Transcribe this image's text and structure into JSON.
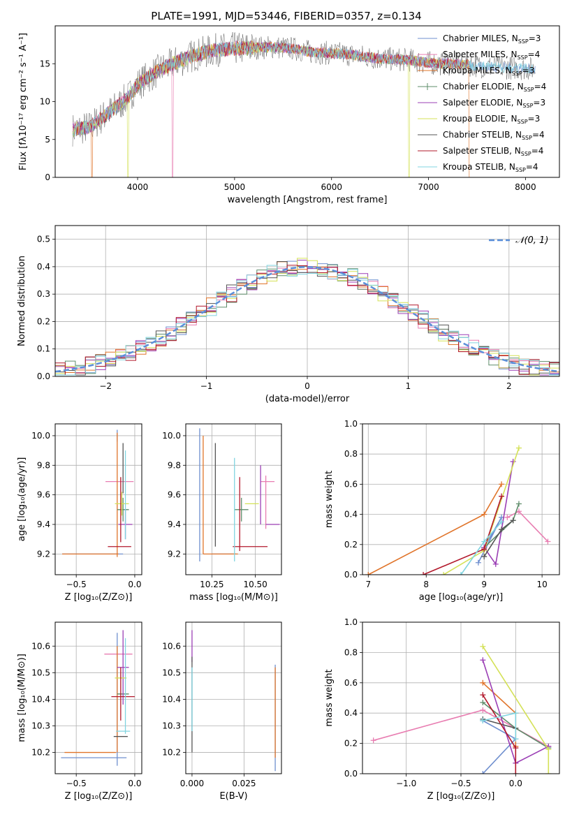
{
  "series_legend": [
    {
      "label": "Chabrier MILES, N",
      "sub": "SSP",
      "suffix": "=3",
      "color": "#6f8fcf"
    },
    {
      "label": "Salpeter MILES, N",
      "sub": "SSP",
      "suffix": "=4",
      "color": "#e87db1"
    },
    {
      "label": "Kroupa MILES, N",
      "sub": "SSP",
      "suffix": "=3",
      "color": "#e0742a"
    },
    {
      "label": "Chabrier ELODIE, N",
      "sub": "SSP",
      "suffix": "=4",
      "color": "#5e8c6a"
    },
    {
      "label": "Salpeter ELODIE, N",
      "sub": "SSP",
      "suffix": "=3",
      "color": "#9b3fb5"
    },
    {
      "label": "Kroupa ELODIE, N",
      "sub": "SSP",
      "suffix": "=3",
      "color": "#d4e157"
    },
    {
      "label": "Chabrier STELIB, N",
      "sub": "SSP",
      "suffix": "=4",
      "color": "#555555"
    },
    {
      "label": "Salpeter STELIB, N",
      "sub": "SSP",
      "suffix": "=4",
      "color": "#b2182b"
    },
    {
      "label": "Kroupa STELIB, N",
      "sub": "SSP",
      "suffix": "=4",
      "color": "#80d4e0"
    }
  ],
  "chart_data": [
    {
      "id": "spectrum",
      "type": "line",
      "title": "PLATE=1991, MJD=53446, FIBERID=0357, z=0.134",
      "xlabel": "wavelength [Angstrom, rest frame]",
      "ylabel": "Flux [fλ10⁻¹⁷ erg cm⁻² s⁻¹ A⁻¹]",
      "xlim": [
        3150,
        8350
      ],
      "ylim": [
        0,
        20
      ],
      "xticks": [
        4000,
        5000,
        6000,
        7000,
        8000
      ],
      "yticks": [
        0,
        5,
        10,
        15
      ],
      "legend": "top-right",
      "continuum": {
        "x": [
          3330,
          3500,
          3700,
          3900,
          4000,
          4200,
          4400,
          4600,
          4800,
          5000,
          5200,
          5400,
          5600,
          5800,
          6000,
          6200,
          6400,
          6600,
          6800,
          7000,
          7200,
          7400,
          7600,
          7800,
          8000,
          8100
        ],
        "y": [
          6.3,
          6.6,
          8.5,
          10.5,
          12.3,
          14.0,
          15.2,
          16.2,
          16.8,
          17.0,
          17.1,
          17.2,
          17.0,
          16.5,
          16.4,
          16.2,
          15.8,
          15.6,
          15.5,
          15.1,
          15.0,
          14.9,
          14.6,
          14.5,
          14.4,
          14.3
        ]
      },
      "drops": [
        {
          "series": "Kroupa MILES",
          "x": 3530
        },
        {
          "series": "Kroupa ELODIE",
          "x": 3900
        },
        {
          "series": "Salpeter MILES",
          "x": 4360
        },
        {
          "series": "Kroupa ELODIE",
          "x": 6800
        },
        {
          "series": "Kroupa MILES",
          "x": 7420
        }
      ]
    },
    {
      "id": "residual-histogram",
      "type": "histogram",
      "xlabel": "(data-model)/error",
      "ylabel": "Normed distribution",
      "xlim": [
        -2.5,
        2.5
      ],
      "ylim": [
        0,
        0.55
      ],
      "xticks": [
        -2,
        -1,
        0,
        1,
        2
      ],
      "yticks": [
        0.0,
        0.1,
        0.2,
        0.3,
        0.4,
        0.5
      ],
      "legend_label": "𝒩(0, 1)",
      "reference": {
        "name": "N(0,1)",
        "mean": 0,
        "sigma": 1,
        "color": "#5b8fd9"
      },
      "bin_width": 0.1
    },
    {
      "id": "age-vs-Z",
      "type": "errorbar",
      "xlabel": "Z [log₁₀(Z/Z⊙)]",
      "ylabel": "age  [log₁₀(age/yr)]",
      "xlim": [
        -0.68,
        0.06
      ],
      "ylim": [
        9.06,
        10.08
      ],
      "xticks": [
        -0.5,
        -0.0
      ],
      "xtick_labels": [
        "−0.5",
        "0.0"
      ],
      "yticks": [
        9.2,
        9.4,
        9.6,
        9.8,
        10.0
      ],
      "points": [
        {
          "s": 0,
          "x": -0.36,
          "xerr": 0.26,
          "y": 9.2,
          "yerr": 0.0
        },
        {
          "s": 0,
          "x": -0.15,
          "xerr": 0.0,
          "y": 10.0,
          "yerr": 0.04
        },
        {
          "s": 1,
          "x": -0.13,
          "xerr": 0.12,
          "y": 9.69,
          "yerr": 0.0
        },
        {
          "s": 2,
          "x": -0.38,
          "xerr": 0.24,
          "y": 9.2,
          "yerr": 0.0
        },
        {
          "s": 2,
          "x": -0.15,
          "xerr": 0.0,
          "y": 9.6,
          "yerr": 0.42
        },
        {
          "s": 3,
          "x": -0.1,
          "xerr": 0.05,
          "y": 9.5,
          "yerr": 0.08
        },
        {
          "s": 4,
          "x": -0.08,
          "xerr": 0.06,
          "y": 9.4,
          "yerr": 0.1
        },
        {
          "s": 5,
          "x": -0.11,
          "xerr": 0.06,
          "y": 9.54,
          "yerr": 0.08
        },
        {
          "s": 6,
          "x": -0.1,
          "xerr": 0.0,
          "y": 9.78,
          "yerr": 0.17
        },
        {
          "s": 7,
          "x": -0.13,
          "xerr": 0.1,
          "y": 9.25,
          "yerr": 0.0
        },
        {
          "s": 7,
          "x": -0.12,
          "xerr": 0.0,
          "y": 9.5,
          "yerr": 0.22
        },
        {
          "s": 8,
          "x": -0.08,
          "xerr": 0.0,
          "y": 9.6,
          "yerr": 0.3
        }
      ]
    },
    {
      "id": "age-vs-mass",
      "type": "errorbar",
      "xlabel": "mass [log₁₀(M/M⊙)]",
      "ylabel": "",
      "xlim": [
        10.1,
        10.65
      ],
      "ylim": [
        9.06,
        10.08
      ],
      "xticks": [
        10.25,
        10.5
      ],
      "xtick_labels": [
        "10.25",
        "10.50"
      ],
      "yticks": [
        9.2,
        9.4,
        9.6,
        9.8,
        10.0
      ],
      "points": [
        {
          "s": 0,
          "x": 10.18,
          "xerr": 0.0,
          "y": 9.6,
          "yerr": 0.45
        },
        {
          "s": 0,
          "x": 10.32,
          "xerr": 0.07,
          "y": 9.2,
          "yerr": 0.0
        },
        {
          "s": 1,
          "x": 10.57,
          "xerr": 0.04,
          "y": 9.69,
          "yerr": 0.0
        },
        {
          "s": 1,
          "x": 10.56,
          "xerr": 0.0,
          "y": 9.55,
          "yerr": 0.18
        },
        {
          "s": 2,
          "x": 10.2,
          "xerr": 0.0,
          "y": 9.6,
          "yerr": 0.4
        },
        {
          "s": 2,
          "x": 10.3,
          "xerr": 0.1,
          "y": 9.2,
          "yerr": 0.0
        },
        {
          "s": 3,
          "x": 10.42,
          "xerr": 0.04,
          "y": 9.5,
          "yerr": 0.08
        },
        {
          "s": 4,
          "x": 10.6,
          "xerr": 0.04,
          "y": 9.4,
          "yerr": 0.0
        },
        {
          "s": 4,
          "x": 10.53,
          "xerr": 0.0,
          "y": 9.6,
          "yerr": 0.2
        },
        {
          "s": 5,
          "x": 10.48,
          "xerr": 0.04,
          "y": 9.54,
          "yerr": 0.0
        },
        {
          "s": 6,
          "x": 10.27,
          "xerr": 0.0,
          "y": 9.6,
          "yerr": 0.35
        },
        {
          "s": 7,
          "x": 10.47,
          "xerr": 0.1,
          "y": 9.25,
          "yerr": 0.0
        },
        {
          "s": 7,
          "x": 10.41,
          "xerr": 0.0,
          "y": 9.47,
          "yerr": 0.25
        },
        {
          "s": 8,
          "x": 10.38,
          "xerr": 0.0,
          "y": 9.5,
          "yerr": 0.35
        }
      ]
    },
    {
      "id": "weight-vs-age",
      "type": "line",
      "xlabel": "age  [log₁₀(age/yr)]",
      "ylabel": "mass weight",
      "xlim": [
        6.9,
        10.3
      ],
      "ylim": [
        0,
        1
      ],
      "xticks": [
        7,
        8,
        9,
        10
      ],
      "yticks": [
        0.0,
        0.2,
        0.4,
        0.6,
        0.8,
        1.0
      ],
      "series": [
        {
          "s": 0,
          "x": [
            8.9,
            9.3,
            9.0
          ],
          "y": [
            0.08,
            0.38,
            0.18
          ]
        },
        {
          "s": 1,
          "x": [
            9.4,
            9.6,
            10.1
          ],
          "y": [
            0.38,
            0.42,
            0.22
          ]
        },
        {
          "s": 2,
          "x": [
            7.0,
            9.0,
            9.3
          ],
          "y": [
            0.0,
            0.4,
            0.6
          ]
        },
        {
          "s": 3,
          "x": [
            9.0,
            9.5,
            9.6
          ],
          "y": [
            0.18,
            0.36,
            0.47
          ]
        },
        {
          "s": 4,
          "x": [
            9.0,
            9.2,
            9.5
          ],
          "y": [
            0.18,
            0.07,
            0.75
          ]
        },
        {
          "s": 5,
          "x": [
            8.3,
            9.0,
            9.6
          ],
          "y": [
            0.0,
            0.16,
            0.84
          ]
        },
        {
          "s": 6,
          "x": [
            9.0,
            9.3,
            9.5
          ],
          "y": [
            0.12,
            0.3,
            0.36
          ]
        },
        {
          "s": 7,
          "x": [
            7.95,
            9.0,
            9.3
          ],
          "y": [
            0.0,
            0.17,
            0.52
          ]
        },
        {
          "s": 8,
          "x": [
            8.6,
            9.0,
            9.3
          ],
          "y": [
            0.0,
            0.22,
            0.35
          ]
        }
      ]
    },
    {
      "id": "mass-vs-Z",
      "type": "errorbar",
      "xlabel": "Z [log₁₀(Z/Z⊙)]",
      "ylabel": "mass [log₁₀(M/M⊙)]",
      "xlim": [
        -0.68,
        0.06
      ],
      "ylim": [
        10.12,
        10.69
      ],
      "xticks": [
        -0.5,
        -0.0
      ],
      "xtick_labels": [
        "−0.5",
        "0.0"
      ],
      "yticks": [
        10.2,
        10.3,
        10.4,
        10.5,
        10.6
      ],
      "points": [
        {
          "s": 0,
          "x": -0.35,
          "xerr": 0.28,
          "y": 10.18,
          "yerr": 0.0
        },
        {
          "s": 0,
          "x": -0.15,
          "xerr": 0.0,
          "y": 10.4,
          "yerr": 0.25
        },
        {
          "s": 1,
          "x": -0.14,
          "xerr": 0.12,
          "y": 10.57,
          "yerr": 0.0
        },
        {
          "s": 2,
          "x": -0.38,
          "xerr": 0.22,
          "y": 10.2,
          "yerr": 0.0
        },
        {
          "s": 2,
          "x": -0.15,
          "xerr": 0.0,
          "y": 10.4,
          "yerr": 0.2
        },
        {
          "s": 3,
          "x": -0.1,
          "xerr": 0.05,
          "y": 10.42,
          "yerr": 0.0
        },
        {
          "s": 4,
          "x": -0.1,
          "xerr": 0.05,
          "y": 10.52,
          "yerr": 0.14
        },
        {
          "s": 5,
          "x": -0.12,
          "xerr": 0.05,
          "y": 10.48,
          "yerr": 0.0
        },
        {
          "s": 6,
          "x": -0.12,
          "xerr": 0.06,
          "y": 10.26,
          "yerr": 0.0
        },
        {
          "s": 7,
          "x": -0.1,
          "xerr": 0.1,
          "y": 10.41,
          "yerr": 0.0
        },
        {
          "s": 7,
          "x": -0.12,
          "xerr": 0.0,
          "y": 10.42,
          "yerr": 0.1
        },
        {
          "s": 8,
          "x": -0.1,
          "xerr": 0.06,
          "y": 10.28,
          "yerr": 0.0
        },
        {
          "s": 8,
          "x": -0.08,
          "xerr": 0.0,
          "y": 10.45,
          "yerr": 0.18
        }
      ]
    },
    {
      "id": "mass-vs-EBV",
      "type": "errorbar",
      "xlabel": "E(B-V)",
      "ylabel": "",
      "xlim": [
        -0.003,
        0.043
      ],
      "ylim": [
        10.12,
        10.69
      ],
      "xticks": [
        0.0,
        0.025
      ],
      "xtick_labels": [
        "0.000",
        "0.025"
      ],
      "yticks": [
        10.2,
        10.3,
        10.4,
        10.5,
        10.6
      ],
      "points": [
        {
          "s": 0,
          "x": 0.04,
          "xerr": 0.0,
          "y": 10.33,
          "yerr": 0.2
        },
        {
          "s": 2,
          "x": 0.04,
          "xerr": 0.0,
          "y": 10.35,
          "yerr": 0.17
        },
        {
          "s": 4,
          "x": 0.0,
          "xerr": 0.0,
          "y": 10.6,
          "yerr": 0.06
        },
        {
          "s": 6,
          "x": 0.0,
          "xerr": 0.0,
          "y": 10.38,
          "yerr": 0.18
        },
        {
          "s": 8,
          "x": 0.0,
          "xerr": 0.0,
          "y": 10.4,
          "yerr": 0.12
        }
      ]
    },
    {
      "id": "weight-vs-Z",
      "type": "line",
      "xlabel": "Z [log₁₀(Z/Z⊙)]",
      "ylabel": "mass weight",
      "xlim": [
        -1.4,
        0.4
      ],
      "ylim": [
        0,
        1
      ],
      "xticks": [
        -1.0,
        -0.5,
        0.0
      ],
      "xtick_labels": [
        "−1.0",
        "−0.5",
        "0.0"
      ],
      "yticks": [
        0.0,
        0.2,
        0.4,
        0.6,
        0.8,
        1.0
      ],
      "series": [
        {
          "s": 0,
          "x": [
            -0.3,
            0.0,
            -0.3
          ],
          "y": [
            0.35,
            0.23,
            0.0
          ]
        },
        {
          "s": 1,
          "x": [
            -1.3,
            -0.3,
            0.3
          ],
          "y": [
            0.22,
            0.42,
            0.18
          ]
        },
        {
          "s": 2,
          "x": [
            -0.3,
            0.0,
            0.0
          ],
          "y": [
            0.6,
            0.4,
            0.18
          ]
        },
        {
          "s": 3,
          "x": [
            -0.3,
            0.0,
            0.3
          ],
          "y": [
            0.47,
            0.3,
            0.17
          ]
        },
        {
          "s": 4,
          "x": [
            -0.3,
            0.0,
            0.3
          ],
          "y": [
            0.75,
            0.07,
            0.18
          ]
        },
        {
          "s": 5,
          "x": [
            -0.3,
            0.3,
            0.3
          ],
          "y": [
            0.84,
            0.16,
            0.0
          ]
        },
        {
          "s": 6,
          "x": [
            -0.3,
            0.0
          ],
          "y": [
            0.36,
            0.3
          ]
        },
        {
          "s": 7,
          "x": [
            -0.3,
            0.0,
            0.0
          ],
          "y": [
            0.52,
            0.17,
            0.0
          ]
        },
        {
          "s": 8,
          "x": [
            -0.3,
            0.0,
            0.0
          ],
          "y": [
            0.35,
            0.4,
            0.23
          ]
        }
      ]
    }
  ]
}
